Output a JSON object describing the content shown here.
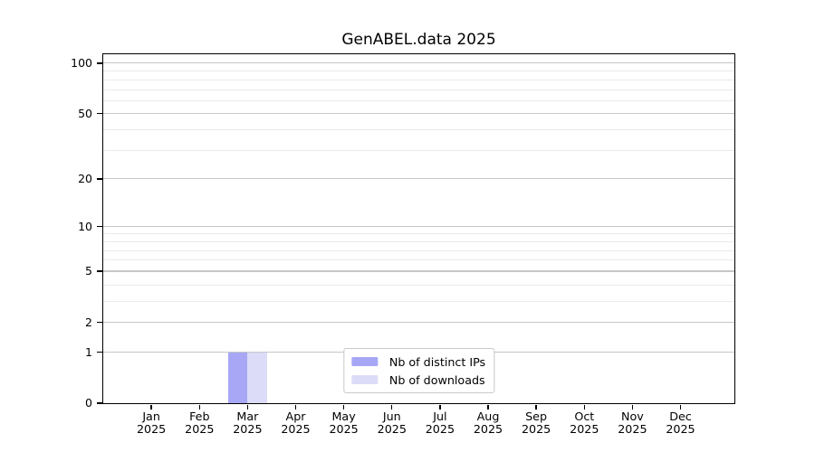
{
  "figure": {
    "background": "#ffffff"
  },
  "chart_data": {
    "type": "bar",
    "title": "GenABEL.data 2025",
    "categories": [
      "Jan 2025",
      "Feb 2025",
      "Mar 2025",
      "Apr 2025",
      "May 2025",
      "Jun 2025",
      "Jul 2025",
      "Aug 2025",
      "Sep 2025",
      "Oct 2025",
      "Nov 2025",
      "Dec 2025"
    ],
    "x_tick_months": [
      "Jan",
      "Feb",
      "Mar",
      "Apr",
      "May",
      "Jun",
      "Jul",
      "Aug",
      "Sep",
      "Oct",
      "Nov",
      "Dec"
    ],
    "x_tick_year": "2025",
    "series": [
      {
        "name": "Nb of distinct IPs",
        "color": "#a7a7f5",
        "values": [
          0,
          0,
          1,
          0,
          0,
          0,
          0,
          0,
          0,
          0,
          0,
          0
        ]
      },
      {
        "name": "Nb of downloads",
        "color": "#dcdcf8",
        "values": [
          0,
          0,
          1,
          0,
          0,
          0,
          0,
          0,
          0,
          0,
          0,
          0
        ]
      }
    ],
    "xlabel": "",
    "ylabel": "",
    "ylim": [
      0,
      113
    ],
    "y_scale": "log1p",
    "y_major_ticks": [
      0,
      1,
      2,
      5,
      10,
      20,
      50,
      100
    ],
    "y_minor_gridlines": [
      3,
      4,
      6,
      7,
      8,
      9,
      30,
      40,
      60,
      70,
      80,
      90
    ],
    "grid": true,
    "legend_position": "lower center"
  },
  "colors": {
    "grid_major": "#c6c6c6",
    "grid_minor": "#eaeaea",
    "spine": "#000000",
    "legend_border": "#c9c9c9"
  }
}
